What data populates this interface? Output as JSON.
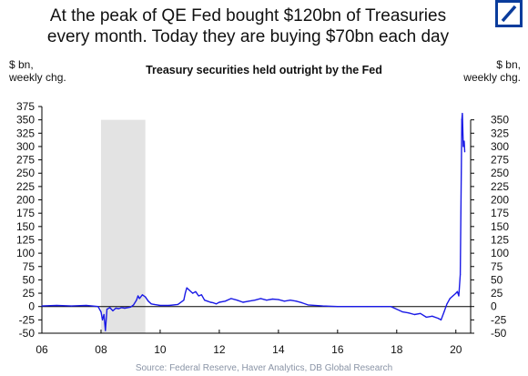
{
  "title_line1": "At the peak of QE Fed bought $120bn of Treasuries",
  "title_line2": "every month. Today they are buying $70bn each day",
  "left_axis_note_line1": "$ bn,",
  "left_axis_note_line2": "weekly chg.",
  "right_axis_note_line1": "$ bn,",
  "right_axis_note_line2": "weekly chg.",
  "source": "Source:  Federal Reserve, Haver Analytics, DB Global Research",
  "logo_icon": "deutsche-bank-slash-logo",
  "colors": {
    "series": "#1a1ae6",
    "shade": "#e3e3e3",
    "logo": "#0a3c9c"
  },
  "chart_data": {
    "type": "line",
    "title": "Treasury securities held outright by the Fed",
    "xlabel": "",
    "ylabel": "$ bn, weekly chg.",
    "ylim": [
      -50,
      375
    ],
    "y_ticks_left": [
      375,
      350,
      325,
      300,
      275,
      250,
      225,
      200,
      175,
      150,
      125,
      100,
      75,
      50,
      25,
      0,
      -25,
      -50
    ],
    "y_ticks_right": [
      350,
      325,
      300,
      275,
      250,
      225,
      200,
      175,
      150,
      125,
      100,
      75,
      50,
      25,
      0,
      -25,
      -50
    ],
    "x_ticks": [
      "06",
      "08",
      "10",
      "12",
      "14",
      "16",
      "18",
      "20"
    ],
    "xlim": [
      2006.0,
      2020.5
    ],
    "shaded_periods": [
      [
        2008.0,
        2009.5
      ]
    ],
    "grid": false,
    "series": [
      {
        "x": [
          2006.0,
          2006.5,
          2007.0,
          2007.5,
          2007.9,
          2008.0,
          2008.05,
          2008.1,
          2008.15,
          2008.2,
          2008.3,
          2008.4,
          2008.5,
          2008.6,
          2008.7,
          2008.8,
          2008.9,
          2009.0,
          2009.1,
          2009.2,
          2009.25,
          2009.3,
          2009.4,
          2009.5,
          2009.6,
          2009.7,
          2009.8,
          2009.9,
          2010.0,
          2010.3,
          2010.6,
          2010.8,
          2010.85,
          2010.9,
          2011.0,
          2011.1,
          2011.2,
          2011.3,
          2011.4,
          2011.5,
          2011.6,
          2011.7,
          2011.8,
          2011.9,
          2012.0,
          2012.2,
          2012.4,
          2012.6,
          2012.8,
          2013.0,
          2013.2,
          2013.4,
          2013.6,
          2013.8,
          2014.0,
          2014.2,
          2014.4,
          2014.6,
          2014.8,
          2015.0,
          2015.5,
          2016.0,
          2016.5,
          2017.0,
          2017.5,
          2017.8,
          2018.0,
          2018.2,
          2018.4,
          2018.6,
          2018.8,
          2019.0,
          2019.2,
          2019.4,
          2019.5,
          2019.6,
          2019.7,
          2019.8,
          2019.9,
          2020.0,
          2020.05,
          2020.1,
          2020.15,
          2020.2,
          2020.22,
          2020.25,
          2020.28,
          2020.3
        ],
        "y": [
          1,
          2,
          1,
          2,
          0,
          -10,
          -25,
          -15,
          -45,
          -5,
          -2,
          -8,
          -3,
          -4,
          -2,
          -3,
          -2,
          -1,
          3,
          12,
          20,
          15,
          22,
          18,
          10,
          5,
          4,
          3,
          2,
          2,
          4,
          12,
          25,
          35,
          30,
          25,
          28,
          20,
          22,
          12,
          10,
          8,
          7,
          5,
          8,
          10,
          15,
          12,
          8,
          10,
          12,
          15,
          12,
          14,
          13,
          10,
          12,
          10,
          7,
          3,
          1,
          0,
          0,
          0,
          0,
          0,
          -5,
          -10,
          -12,
          -15,
          -13,
          -20,
          -18,
          -22,
          -25,
          -10,
          5,
          15,
          20,
          25,
          28,
          20,
          60,
          350,
          362,
          300,
          310,
          290
        ]
      }
    ]
  }
}
